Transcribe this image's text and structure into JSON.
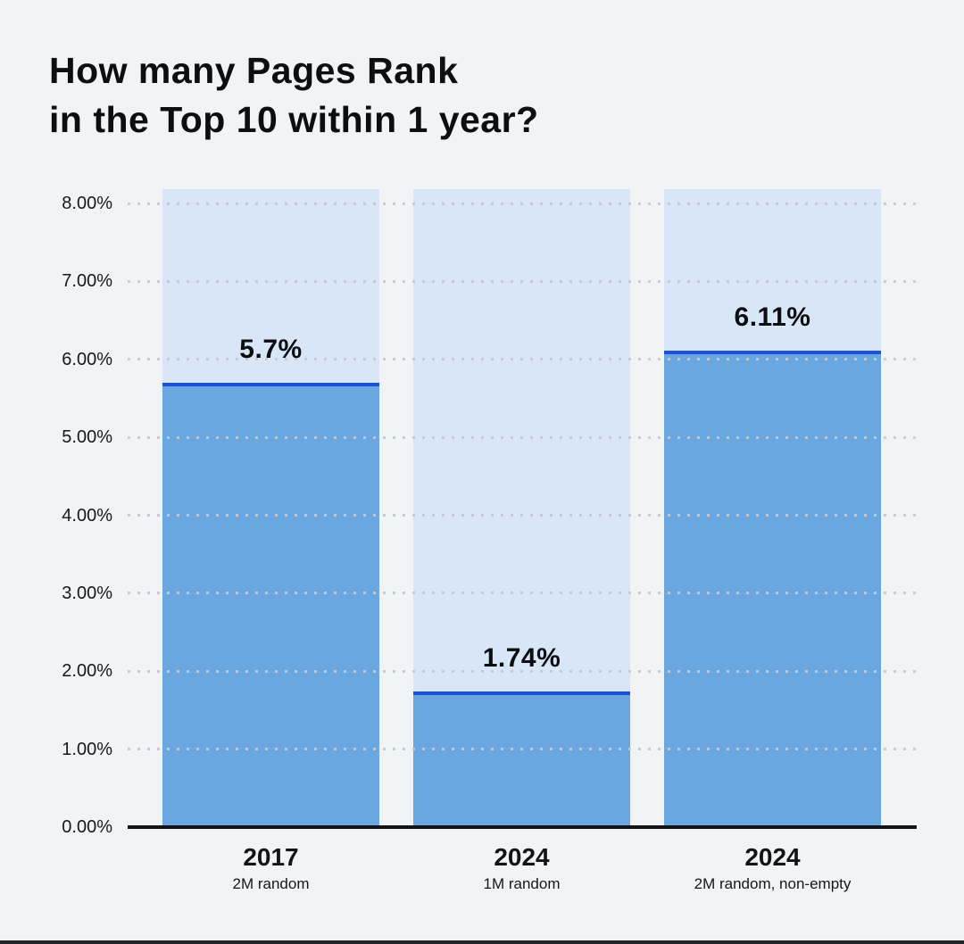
{
  "title": {
    "line1": "How many Pages Rank",
    "line2": "in the Top 10 within 1 year?"
  },
  "colors": {
    "page_bg": "#f1f3f5",
    "bar_background": "#d8e6f8",
    "bar_fill": "#6aa6e0",
    "bar_top_stroke": "#1b51d8",
    "grid_dot": "#c4c9d3",
    "axis_line": "#101418",
    "text": "#0c0f12",
    "bottom_strip": "#20252c"
  },
  "chart_data": {
    "type": "bar",
    "title": "How many Pages Rank in the Top 10 within 1 year?",
    "categories": [
      "2017",
      "2024",
      "2024"
    ],
    "category_sublabels": [
      "2M random",
      "1M random",
      "2M random, non-empty"
    ],
    "values": [
      5.7,
      1.74,
      6.11
    ],
    "value_labels": [
      "5.7%",
      "1.74%",
      "6.11%"
    ],
    "ylabel": "",
    "xlabel": "",
    "ylim": [
      0,
      8.2
    ],
    "background_bar_value": 8.18,
    "ytick_labels": [
      "0.00%",
      "1.00%",
      "2.00%",
      "3.00%",
      "4.00%",
      "5.00%",
      "6.00%",
      "7.00%",
      "8.00%"
    ],
    "grid": "dotted-horizontal",
    "legend_position": "none"
  }
}
